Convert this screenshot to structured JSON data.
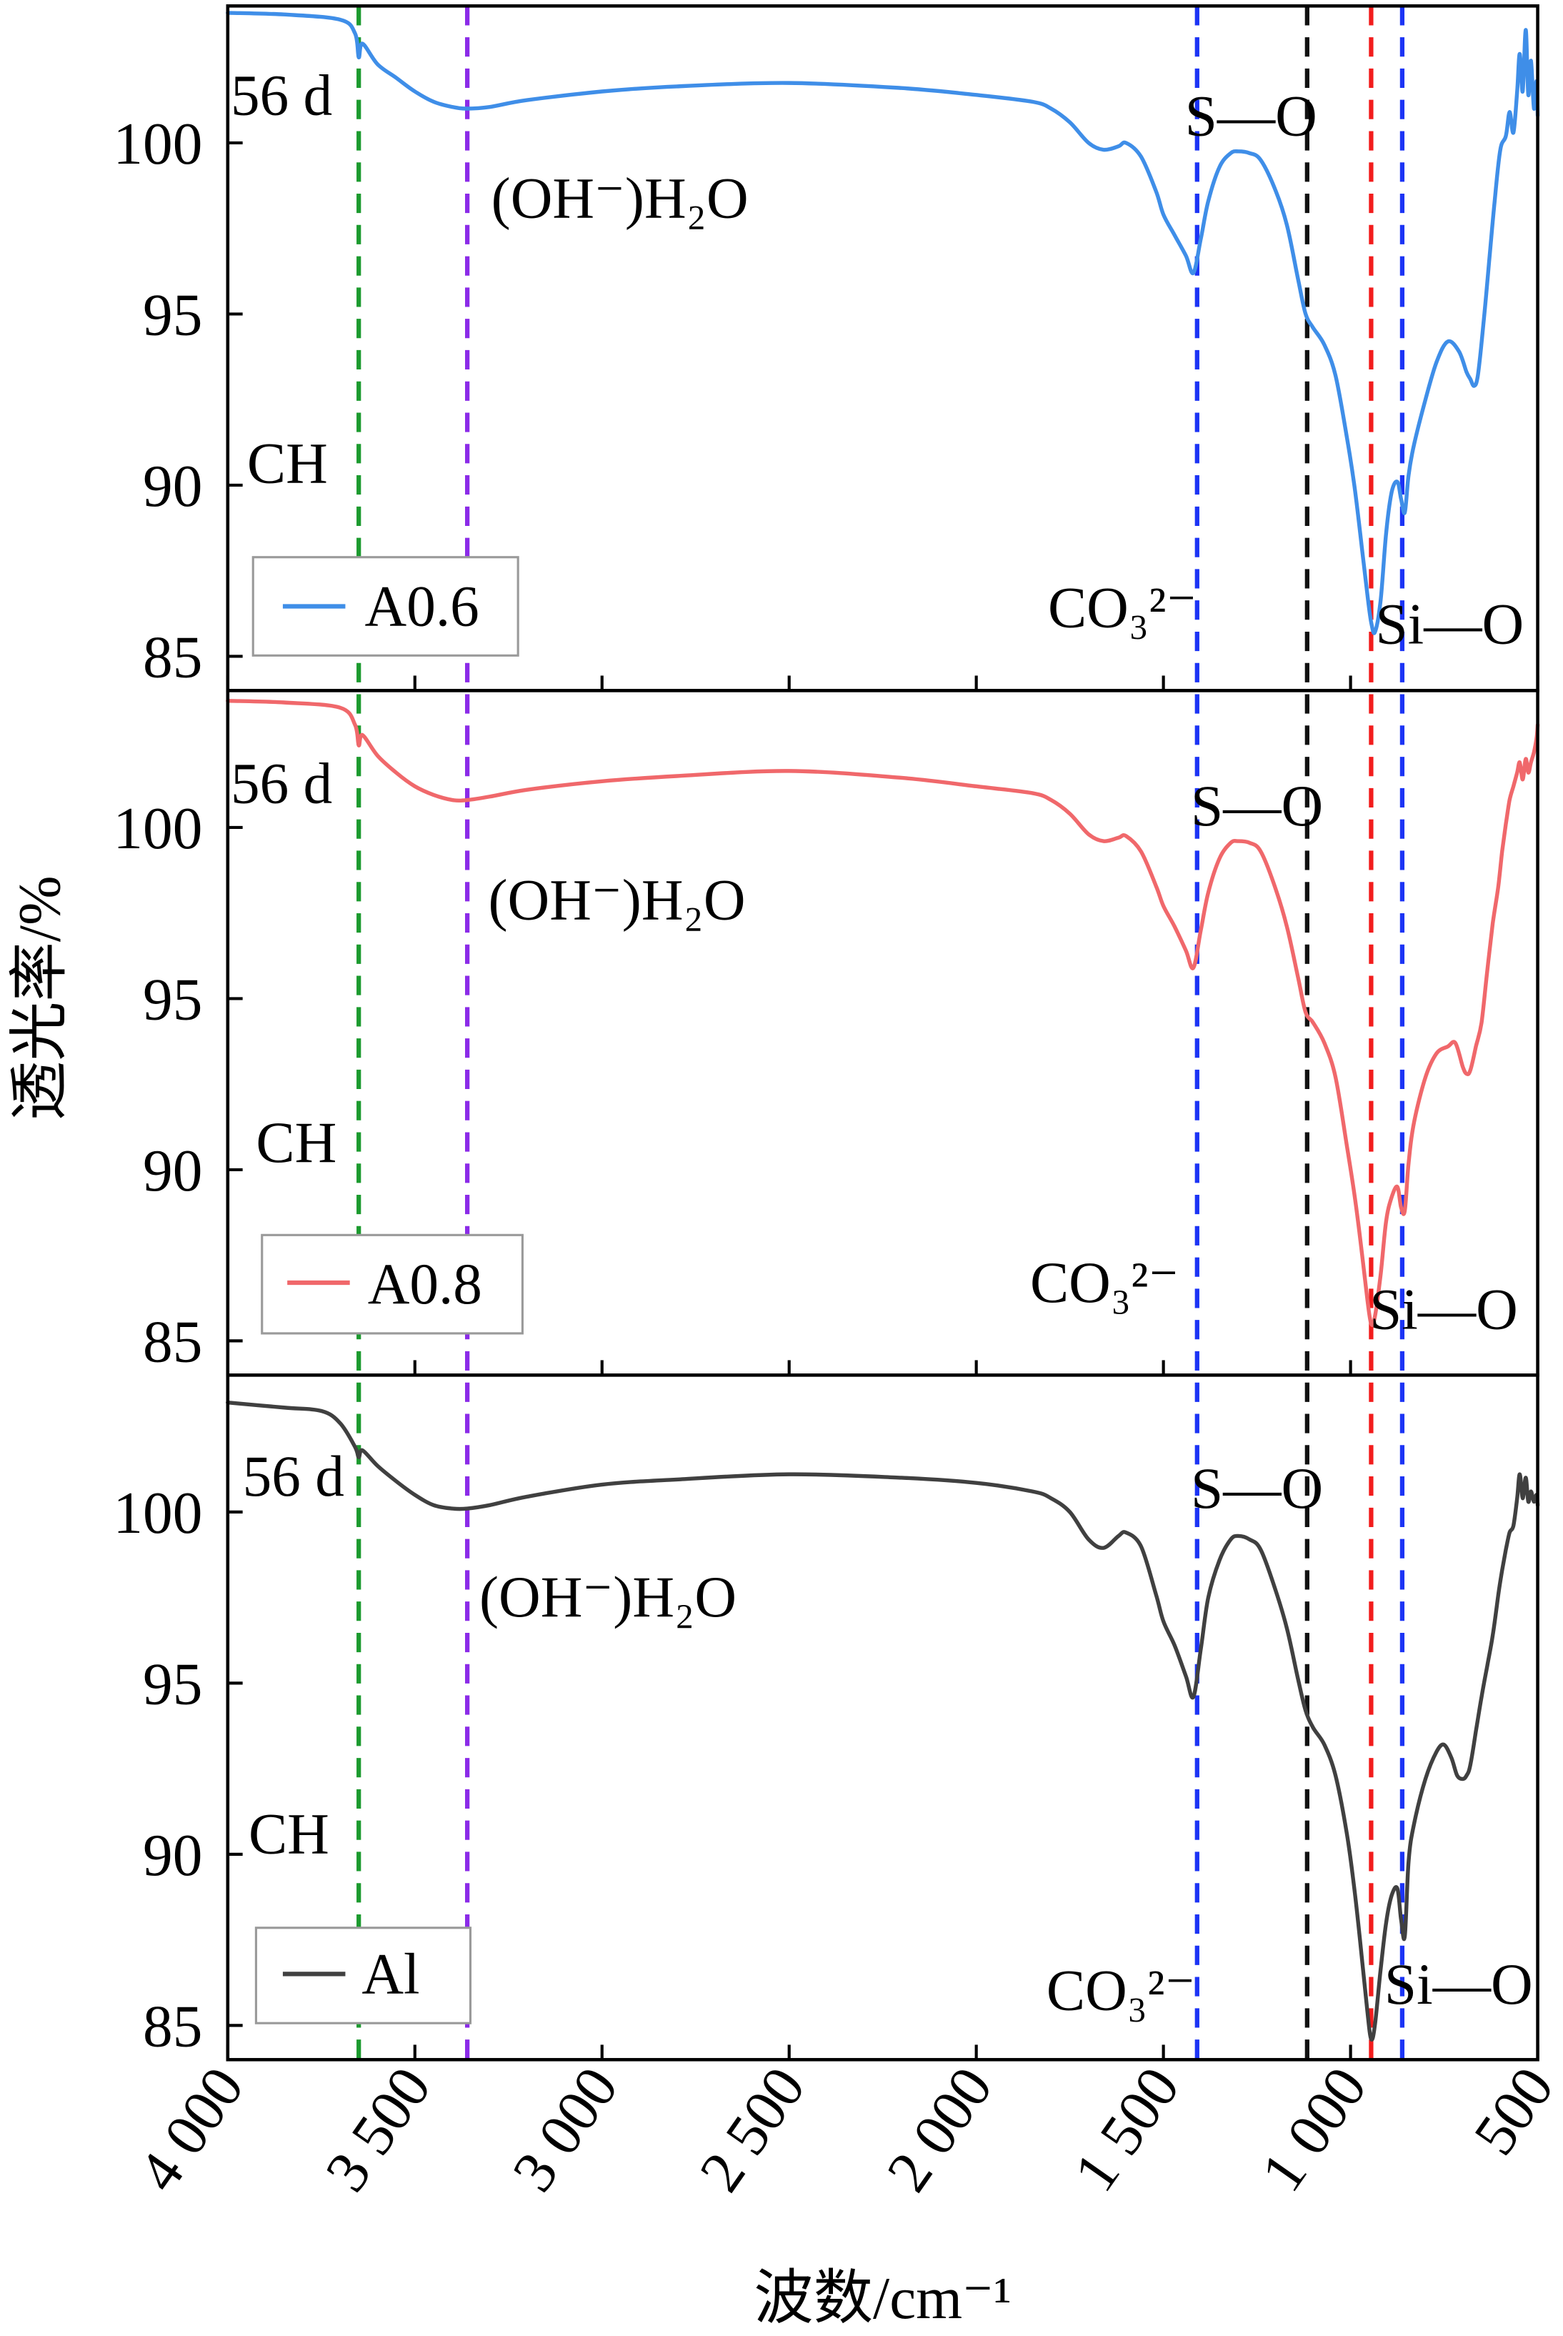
{
  "chart_data": {
    "type": "line",
    "xlabel": "波数/cm⁻¹",
    "ylabel": "透光率/%",
    "xlim": [
      4000,
      500
    ],
    "ylim": [
      84,
      104
    ],
    "x_tick_values": [
      4000,
      3500,
      3000,
      2500,
      2000,
      1500,
      1000,
      500
    ],
    "x_ticks": [
      "4 000",
      "3 500",
      "3 000",
      "2 500",
      "2 000",
      "1 500",
      "1 000",
      "500"
    ],
    "y_ticks": [
      85,
      90,
      95,
      100
    ],
    "annotations": {
      "age": "56 d",
      "water": "(OH⁻)H₂O",
      "so": "S—O",
      "ch": "CH",
      "co3": "CO₃²⁻",
      "sio": "Si—O"
    },
    "reference_lines": [
      {
        "x": 3650,
        "color": "#1b9a2e"
      },
      {
        "x": 3360,
        "color": "#8b2be8"
      },
      {
        "x": 1410,
        "color": "#1c34f5"
      },
      {
        "x": 1116,
        "color": "#111111"
      },
      {
        "x": 945,
        "color": "#f21c1c"
      },
      {
        "x": 862,
        "color": "#1c34f5"
      }
    ],
    "series": [
      {
        "name": "A0.6",
        "color": "#3f8ee8",
        "points": [
          [
            4000,
            103.8
          ],
          [
            3850,
            103.75
          ],
          [
            3700,
            103.6
          ],
          [
            3660,
            103.2
          ],
          [
            3650,
            102.5
          ],
          [
            3640,
            102.9
          ],
          [
            3600,
            102.3
          ],
          [
            3550,
            101.9
          ],
          [
            3500,
            101.5
          ],
          [
            3450,
            101.2
          ],
          [
            3400,
            101.05
          ],
          [
            3360,
            101.0
          ],
          [
            3300,
            101.05
          ],
          [
            3200,
            101.25
          ],
          [
            3000,
            101.5
          ],
          [
            2800,
            101.65
          ],
          [
            2500,
            101.75
          ],
          [
            2200,
            101.6
          ],
          [
            2000,
            101.4
          ],
          [
            1850,
            101.2
          ],
          [
            1800,
            101.0
          ],
          [
            1750,
            100.6
          ],
          [
            1700,
            100.0
          ],
          [
            1660,
            99.8
          ],
          [
            1620,
            99.9
          ],
          [
            1600,
            100.0
          ],
          [
            1560,
            99.6
          ],
          [
            1520,
            98.6
          ],
          [
            1500,
            97.9
          ],
          [
            1470,
            97.3
          ],
          [
            1440,
            96.7
          ],
          [
            1420,
            96.2
          ],
          [
            1400,
            97.2
          ],
          [
            1380,
            98.3
          ],
          [
            1350,
            99.3
          ],
          [
            1320,
            99.7
          ],
          [
            1300,
            99.75
          ],
          [
            1270,
            99.7
          ],
          [
            1240,
            99.5
          ],
          [
            1200,
            98.6
          ],
          [
            1170,
            97.6
          ],
          [
            1140,
            96.0
          ],
          [
            1120,
            95.0
          ],
          [
            1100,
            94.6
          ],
          [
            1070,
            94.1
          ],
          [
            1040,
            93.2
          ],
          [
            1010,
            91.4
          ],
          [
            990,
            90.0
          ],
          [
            970,
            88.2
          ],
          [
            955,
            86.8
          ],
          [
            945,
            86.0
          ],
          [
            935,
            85.7
          ],
          [
            920,
            86.6
          ],
          [
            905,
            88.6
          ],
          [
            890,
            89.8
          ],
          [
            875,
            90.1
          ],
          [
            865,
            89.6
          ],
          [
            855,
            89.2
          ],
          [
            845,
            90.3
          ],
          [
            830,
            91.2
          ],
          [
            800,
            92.5
          ],
          [
            770,
            93.6
          ],
          [
            740,
            94.2
          ],
          [
            710,
            93.9
          ],
          [
            690,
            93.3
          ],
          [
            680,
            93.1
          ],
          [
            670,
            92.9
          ],
          [
            660,
            93.2
          ],
          [
            645,
            94.7
          ],
          [
            630,
            96.5
          ],
          [
            615,
            98.3
          ],
          [
            600,
            99.8
          ],
          [
            585,
            100.2
          ],
          [
            575,
            100.9
          ],
          [
            565,
            100.3
          ],
          [
            555,
            101.5
          ],
          [
            548,
            102.6
          ],
          [
            540,
            101.5
          ],
          [
            532,
            103.3
          ],
          [
            525,
            101.4
          ],
          [
            518,
            102.4
          ],
          [
            510,
            101.0
          ],
          [
            503,
            101.8
          ],
          [
            500,
            100.8
          ]
        ]
      },
      {
        "name": "A0.8",
        "color": "#f0686b",
        "points": [
          [
            4000,
            103.7
          ],
          [
            3850,
            103.65
          ],
          [
            3700,
            103.5
          ],
          [
            3660,
            103.0
          ],
          [
            3650,
            102.4
          ],
          [
            3640,
            102.7
          ],
          [
            3600,
            102.1
          ],
          [
            3550,
            101.6
          ],
          [
            3500,
            101.2
          ],
          [
            3450,
            100.95
          ],
          [
            3400,
            100.8
          ],
          [
            3360,
            100.8
          ],
          [
            3300,
            100.9
          ],
          [
            3200,
            101.1
          ],
          [
            3000,
            101.35
          ],
          [
            2800,
            101.5
          ],
          [
            2500,
            101.65
          ],
          [
            2200,
            101.45
          ],
          [
            2000,
            101.2
          ],
          [
            1850,
            101.0
          ],
          [
            1800,
            100.8
          ],
          [
            1750,
            100.4
          ],
          [
            1700,
            99.8
          ],
          [
            1660,
            99.6
          ],
          [
            1620,
            99.7
          ],
          [
            1600,
            99.75
          ],
          [
            1560,
            99.3
          ],
          [
            1520,
            98.3
          ],
          [
            1500,
            97.7
          ],
          [
            1470,
            97.1
          ],
          [
            1440,
            96.4
          ],
          [
            1420,
            95.9
          ],
          [
            1400,
            97.0
          ],
          [
            1380,
            98.1
          ],
          [
            1350,
            99.1
          ],
          [
            1320,
            99.55
          ],
          [
            1300,
            99.6
          ],
          [
            1270,
            99.55
          ],
          [
            1240,
            99.3
          ],
          [
            1200,
            98.2
          ],
          [
            1170,
            97.1
          ],
          [
            1140,
            95.6
          ],
          [
            1120,
            94.6
          ],
          [
            1100,
            94.3
          ],
          [
            1070,
            93.7
          ],
          [
            1040,
            92.7
          ],
          [
            1010,
            90.7
          ],
          [
            990,
            89.3
          ],
          [
            970,
            87.6
          ],
          [
            955,
            86.2
          ],
          [
            945,
            85.5
          ],
          [
            935,
            85.7
          ],
          [
            920,
            86.9
          ],
          [
            905,
            88.5
          ],
          [
            890,
            89.2
          ],
          [
            875,
            89.5
          ],
          [
            865,
            88.9
          ],
          [
            855,
            88.8
          ],
          [
            845,
            90.2
          ],
          [
            830,
            91.4
          ],
          [
            800,
            92.7
          ],
          [
            770,
            93.4
          ],
          [
            740,
            93.6
          ],
          [
            720,
            93.7
          ],
          [
            700,
            93.0
          ],
          [
            690,
            92.8
          ],
          [
            680,
            92.9
          ],
          [
            665,
            93.6
          ],
          [
            650,
            94.3
          ],
          [
            635,
            95.8
          ],
          [
            620,
            97.2
          ],
          [
            605,
            98.3
          ],
          [
            595,
            99.3
          ],
          [
            585,
            100.1
          ],
          [
            575,
            100.8
          ],
          [
            565,
            101.2
          ],
          [
            555,
            101.6
          ],
          [
            548,
            101.9
          ],
          [
            540,
            101.4
          ],
          [
            532,
            102.0
          ],
          [
            525,
            101.6
          ],
          [
            518,
            101.9
          ],
          [
            510,
            102.2
          ],
          [
            503,
            102.6
          ],
          [
            500,
            103.0
          ]
        ]
      },
      {
        "name": "Al",
        "color": "#404040",
        "points": [
          [
            4000,
            103.2
          ],
          [
            3850,
            103.05
          ],
          [
            3750,
            102.95
          ],
          [
            3700,
            102.6
          ],
          [
            3660,
            101.9
          ],
          [
            3650,
            101.6
          ],
          [
            3640,
            101.8
          ],
          [
            3600,
            101.35
          ],
          [
            3550,
            100.9
          ],
          [
            3500,
            100.5
          ],
          [
            3450,
            100.2
          ],
          [
            3400,
            100.1
          ],
          [
            3360,
            100.1
          ],
          [
            3300,
            100.2
          ],
          [
            3200,
            100.45
          ],
          [
            3000,
            100.8
          ],
          [
            2800,
            100.95
          ],
          [
            2500,
            101.1
          ],
          [
            2200,
            101.0
          ],
          [
            2000,
            100.85
          ],
          [
            1850,
            100.6
          ],
          [
            1800,
            100.4
          ],
          [
            1750,
            100.0
          ],
          [
            1700,
            99.2
          ],
          [
            1660,
            98.95
          ],
          [
            1620,
            99.3
          ],
          [
            1600,
            99.4
          ],
          [
            1560,
            99.0
          ],
          [
            1520,
            97.6
          ],
          [
            1500,
            96.8
          ],
          [
            1470,
            96.1
          ],
          [
            1440,
            95.2
          ],
          [
            1420,
            94.6
          ],
          [
            1400,
            96.0
          ],
          [
            1380,
            97.5
          ],
          [
            1350,
            98.6
          ],
          [
            1320,
            99.2
          ],
          [
            1300,
            99.3
          ],
          [
            1270,
            99.2
          ],
          [
            1240,
            98.9
          ],
          [
            1200,
            97.7
          ],
          [
            1170,
            96.6
          ],
          [
            1140,
            95.1
          ],
          [
            1120,
            94.2
          ],
          [
            1100,
            93.7
          ],
          [
            1070,
            93.2
          ],
          [
            1040,
            92.3
          ],
          [
            1010,
            90.6
          ],
          [
            990,
            89.0
          ],
          [
            970,
            87.0
          ],
          [
            955,
            85.4
          ],
          [
            945,
            84.6
          ],
          [
            935,
            85.0
          ],
          [
            920,
            86.6
          ],
          [
            905,
            88.0
          ],
          [
            890,
            88.8
          ],
          [
            875,
            89.0
          ],
          [
            865,
            88.1
          ],
          [
            855,
            87.6
          ],
          [
            845,
            89.8
          ],
          [
            830,
            90.9
          ],
          [
            800,
            92.2
          ],
          [
            770,
            93.0
          ],
          [
            750,
            93.2
          ],
          [
            730,
            92.8
          ],
          [
            715,
            92.3
          ],
          [
            700,
            92.2
          ],
          [
            690,
            92.3
          ],
          [
            680,
            92.6
          ],
          [
            665,
            93.6
          ],
          [
            650,
            94.6
          ],
          [
            635,
            95.5
          ],
          [
            620,
            96.4
          ],
          [
            605,
            97.6
          ],
          [
            595,
            98.3
          ],
          [
            585,
            98.9
          ],
          [
            575,
            99.4
          ],
          [
            565,
            99.6
          ],
          [
            555,
            100.4
          ],
          [
            548,
            101.1
          ],
          [
            540,
            100.4
          ],
          [
            532,
            101.0
          ],
          [
            525,
            100.3
          ],
          [
            518,
            100.6
          ],
          [
            510,
            100.3
          ],
          [
            503,
            100.5
          ],
          [
            500,
            100.2
          ]
        ]
      }
    ]
  }
}
